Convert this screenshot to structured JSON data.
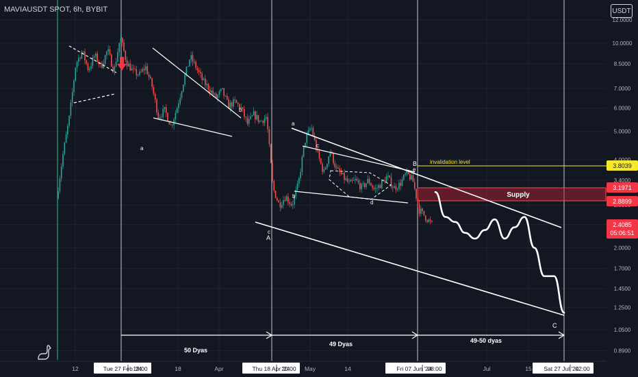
{
  "symbol_title": "MAVIAUSDT SPOT, 6h, BYBIT",
  "currency": "USDT",
  "colors": {
    "background": "#131722",
    "candle_up": "#26a69a",
    "candle_down": "#ef5350",
    "drawing": "#ffffff",
    "invalidation": "#f5e82d",
    "supply_fill": "#b2222f",
    "supply_border": "#ef5350",
    "current_price_bg": "#f23645",
    "listing_line": "#1e8c66",
    "signal_arrow": "#f23645"
  },
  "annotations": {
    "invalidation": "invalidation level",
    "supply": "Supply",
    "duration_1": "50 Dyas",
    "duration_2": "49 Dyas",
    "duration_3": "49-50 dyas",
    "wave_labels": [
      "a",
      "b",
      "c",
      "A",
      "a",
      "b",
      "c",
      "d",
      "e",
      "B",
      "C",
      "a",
      "b",
      "c",
      "d"
    ]
  },
  "price_labels": {
    "invalidation_tag": "3.8039",
    "supply_top_tag": "3.1971",
    "supply_bottom_tag": "2.8899",
    "current_price_tag": "2.4085",
    "countdown_tag": "05:06:51"
  },
  "chart_data": {
    "type": "line",
    "title": "MAVIAUSDT SPOT, 6h, BYBIT",
    "y_scale": "log",
    "ylim": [
      0.79,
      13.3
    ],
    "y_tick_labels": [
      "12.0000",
      "10.0000",
      "8.5000",
      "7.0000",
      "6.0000",
      "5.0000",
      "4.0000",
      "3.4000",
      "2.8000",
      "2.4000",
      "2.0000",
      "1.7000",
      "1.4500",
      "1.2500",
      "1.0500",
      "0.8900"
    ],
    "x_tick_labels": [
      "12",
      "Tue 27 Feb '24",
      "19:00",
      "18",
      "Apr",
      "Thu 18 Apr '24",
      "20:00",
      "May",
      "14",
      "Fri 07 Jun '24",
      "08:00",
      "Jul",
      "15",
      "Sat 27 Jul '24",
      "02:00"
    ],
    "vertical_markers": [
      "Tue 27 Feb '24 19:00",
      "Thu 18 Apr '24 20:00",
      "Fri 07 Jun '24 08:00",
      "Sat 27 Jul '24 02:00"
    ],
    "levels": {
      "invalidation": 3.8039,
      "supply_top": 3.1971,
      "supply_bottom": 2.8899,
      "last_price": 2.4085
    },
    "series": [
      {
        "values": [
          2.95,
          4.2,
          5.6,
          8.5,
          9.4,
          8.1,
          9.1,
          8.3,
          9.5,
          8.0,
          10.5,
          8.6,
          8.0,
          7.8,
          8.3,
          7.1,
          5.6,
          5.9,
          5.2,
          6.1,
          7.5,
          9.0,
          8.2,
          7.4,
          7.0,
          6.5,
          6.9,
          6.1,
          6.3,
          6.0,
          5.3,
          5.7,
          5.4,
          5.6,
          3.2,
          2.8,
          3.0,
          2.8,
          3.3,
          4.6,
          5.2,
          4.2,
          3.6,
          4.3,
          3.7,
          3.5,
          3.3,
          3.4,
          3.2,
          3.4,
          3.15,
          3.3,
          3.5,
          3.2,
          3.3,
          3.6,
          3.4,
          2.7,
          2.55,
          2.4
        ]
      },
      {
        "name": "Projection",
        "values": [
          3.1,
          2.55,
          2.45,
          2.25,
          2.15,
          2.3,
          2.5,
          2.15,
          2.35,
          2.55,
          2.0,
          1.6,
          1.6,
          1.2
        ]
      }
    ]
  }
}
